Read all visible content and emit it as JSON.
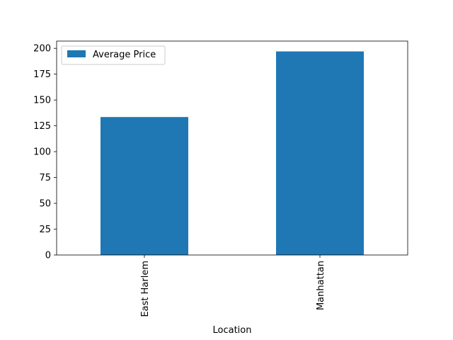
{
  "chart_data": {
    "type": "bar",
    "categories": [
      "East Harlem",
      "Manhattan"
    ],
    "series": [
      {
        "name": "Average Price",
        "values": [
          133.5,
          197
        ]
      }
    ],
    "title": "",
    "xlabel": "Location",
    "ylabel": "",
    "ylim": [
      0,
      207
    ],
    "yticks": [
      0,
      25,
      50,
      75,
      100,
      125,
      150,
      175,
      200
    ],
    "grid": false,
    "legend": "top-left",
    "bar_color": "#1f77b4"
  }
}
